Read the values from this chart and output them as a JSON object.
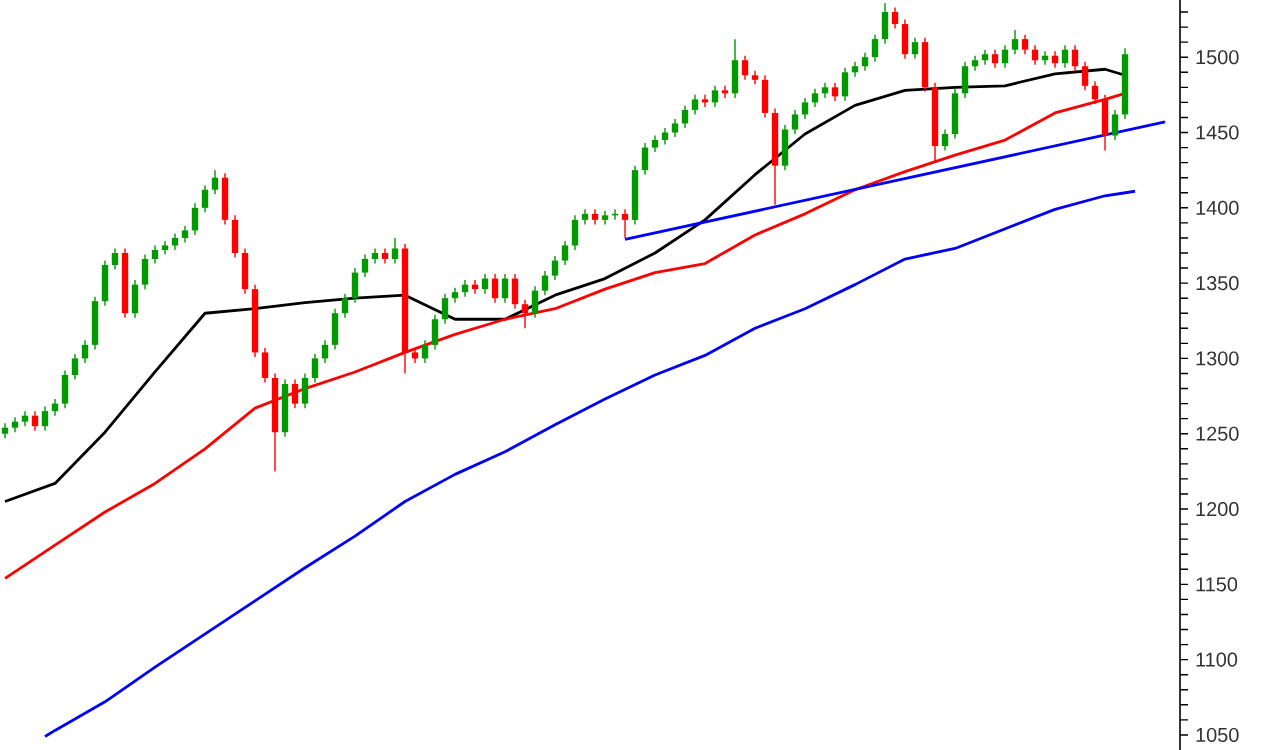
{
  "chart_data": {
    "type": "candlestick",
    "tick_labels": "y",
    "categories": [
      null,
      null,
      null,
      null,
      null,
      null,
      null,
      null,
      null,
      null,
      null,
      null,
      null,
      null,
      null,
      null,
      null,
      null,
      null,
      null,
      null,
      null,
      null,
      null,
      null,
      null,
      null,
      null,
      null,
      null,
      null,
      null,
      null,
      null,
      null,
      null,
      null,
      null,
      null,
      null,
      null,
      null,
      null,
      null,
      null,
      null,
      null,
      null,
      null,
      null,
      null,
      null,
      null,
      null,
      null,
      null,
      null,
      null,
      null,
      null,
      null,
      null,
      null,
      null,
      null,
      null,
      null,
      null,
      null,
      null,
      null,
      null,
      null,
      null,
      null,
      null,
      null,
      null,
      null,
      null,
      null,
      null,
      null,
      null,
      null,
      null,
      null,
      null,
      null,
      null,
      null,
      null,
      null,
      null,
      null,
      null,
      null,
      null,
      null,
      null,
      null,
      null,
      null,
      null,
      null,
      null,
      null,
      null,
      null,
      null,
      null,
      null,
      null,
      null,
      null,
      null,
      null
    ],
    "ohlc": [
      [
        1250,
        1257,
        1247,
        1254
      ],
      [
        1254,
        1261,
        1251,
        1258
      ],
      [
        1258,
        1265,
        1255,
        1262
      ],
      [
        1262,
        1265,
        1252,
        1255
      ],
      [
        1255,
        1268,
        1252,
        1265
      ],
      [
        1265,
        1273,
        1262,
        1270
      ],
      [
        1270,
        1292,
        1267,
        1289
      ],
      [
        1289,
        1303,
        1286,
        1300
      ],
      [
        1300,
        1312,
        1297,
        1309
      ],
      [
        1309,
        1341,
        1306,
        1338
      ],
      [
        1338,
        1365,
        1335,
        1362
      ],
      [
        1362,
        1373,
        1359,
        1370
      ],
      [
        1370,
        1373,
        1327,
        1330
      ],
      [
        1330,
        1352,
        1327,
        1349
      ],
      [
        1349,
        1369,
        1346,
        1366
      ],
      [
        1366,
        1375,
        1363,
        1372
      ],
      [
        1372,
        1378,
        1369,
        1375
      ],
      [
        1375,
        1383,
        1372,
        1380
      ],
      [
        1380,
        1388,
        1377,
        1385
      ],
      [
        1385,
        1403,
        1382,
        1400
      ],
      [
        1400,
        1415,
        1397,
        1412
      ],
      [
        1412,
        1425,
        1409,
        1420
      ],
      [
        1420,
        1423,
        1389,
        1392
      ],
      [
        1392,
        1395,
        1367,
        1370
      ],
      [
        1370,
        1373,
        1343,
        1346
      ],
      [
        1346,
        1349,
        1301,
        1304
      ],
      [
        1304,
        1307,
        1284,
        1287
      ],
      [
        1287,
        1290,
        1225,
        1251
      ],
      [
        1251,
        1286,
        1248,
        1283
      ],
      [
        1283,
        1286,
        1267,
        1270
      ],
      [
        1270,
        1290,
        1267,
        1287
      ],
      [
        1287,
        1303,
        1284,
        1300
      ],
      [
        1300,
        1312,
        1297,
        1309
      ],
      [
        1309,
        1333,
        1306,
        1330
      ],
      [
        1330,
        1343,
        1327,
        1340
      ],
      [
        1340,
        1360,
        1337,
        1357
      ],
      [
        1357,
        1369,
        1354,
        1366
      ],
      [
        1366,
        1373,
        1363,
        1370
      ],
      [
        1370,
        1373,
        1363,
        1366
      ],
      [
        1366,
        1380,
        1363,
        1373
      ],
      [
        1373,
        1376,
        1290,
        1304
      ],
      [
        1304,
        1307,
        1297,
        1300
      ],
      [
        1300,
        1312,
        1297,
        1309
      ],
      [
        1309,
        1329,
        1306,
        1326
      ],
      [
        1326,
        1343,
        1323,
        1340
      ],
      [
        1340,
        1347,
        1337,
        1344
      ],
      [
        1344,
        1352,
        1341,
        1349
      ],
      [
        1349,
        1352,
        1343,
        1346
      ],
      [
        1346,
        1356,
        1343,
        1353
      ],
      [
        1353,
        1356,
        1337,
        1340
      ],
      [
        1340,
        1356,
        1337,
        1353
      ],
      [
        1353,
        1356,
        1333,
        1336
      ],
      [
        1336,
        1339,
        1320,
        1330
      ],
      [
        1330,
        1348,
        1327,
        1345
      ],
      [
        1345,
        1358,
        1342,
        1355
      ],
      [
        1355,
        1368,
        1352,
        1365
      ],
      [
        1365,
        1378,
        1362,
        1375
      ],
      [
        1375,
        1395,
        1372,
        1392
      ],
      [
        1392,
        1399,
        1389,
        1396
      ],
      [
        1396,
        1399,
        1389,
        1392
      ],
      [
        1392,
        1398,
        1389,
        1395
      ],
      [
        1395,
        1399,
        1392,
        1396
      ],
      [
        1396,
        1399,
        1380,
        1392
      ],
      [
        1392,
        1428,
        1389,
        1425
      ],
      [
        1425,
        1443,
        1422,
        1440
      ],
      [
        1440,
        1448,
        1437,
        1445
      ],
      [
        1445,
        1453,
        1442,
        1450
      ],
      [
        1450,
        1459,
        1447,
        1456
      ],
      [
        1456,
        1468,
        1453,
        1465
      ],
      [
        1465,
        1475,
        1462,
        1472
      ],
      [
        1472,
        1475,
        1467,
        1470
      ],
      [
        1470,
        1481,
        1467,
        1478
      ],
      [
        1478,
        1481,
        1473,
        1476
      ],
      [
        1476,
        1512,
        1473,
        1498
      ],
      [
        1498,
        1501,
        1485,
        1488
      ],
      [
        1488,
        1491,
        1482,
        1485
      ],
      [
        1485,
        1488,
        1460,
        1463
      ],
      [
        1463,
        1466,
        1402,
        1428
      ],
      [
        1428,
        1455,
        1425,
        1452
      ],
      [
        1452,
        1465,
        1449,
        1462
      ],
      [
        1462,
        1473,
        1459,
        1470
      ],
      [
        1470,
        1479,
        1467,
        1476
      ],
      [
        1476,
        1483,
        1473,
        1480
      ],
      [
        1480,
        1483,
        1471,
        1474
      ],
      [
        1474,
        1493,
        1471,
        1490
      ],
      [
        1490,
        1497,
        1487,
        1494
      ],
      [
        1494,
        1503,
        1491,
        1500
      ],
      [
        1500,
        1515,
        1497,
        1512
      ],
      [
        1512,
        1536,
        1509,
        1530
      ],
      [
        1530,
        1533,
        1519,
        1522
      ],
      [
        1522,
        1525,
        1499,
        1502
      ],
      [
        1502,
        1513,
        1499,
        1510
      ],
      [
        1510,
        1513,
        1477,
        1480
      ],
      [
        1480,
        1483,
        1430,
        1441
      ],
      [
        1441,
        1452,
        1438,
        1449
      ],
      [
        1449,
        1479,
        1446,
        1476
      ],
      [
        1476,
        1497,
        1473,
        1494
      ],
      [
        1494,
        1501,
        1491,
        1498
      ],
      [
        1498,
        1505,
        1495,
        1502
      ],
      [
        1502,
        1505,
        1493,
        1496
      ],
      [
        1496,
        1508,
        1493,
        1505
      ],
      [
        1505,
        1518,
        1502,
        1512
      ],
      [
        1512,
        1515,
        1502,
        1505
      ],
      [
        1505,
        1508,
        1495,
        1498
      ],
      [
        1498,
        1504,
        1495,
        1501
      ],
      [
        1501,
        1504,
        1493,
        1496
      ],
      [
        1496,
        1508,
        1493,
        1505
      ],
      [
        1505,
        1508,
        1491,
        1494
      ],
      [
        1494,
        1497,
        1478,
        1481
      ],
      [
        1481,
        1484,
        1469,
        1472
      ],
      [
        1472,
        1475,
        1438,
        1448
      ],
      [
        1448,
        1465,
        1445,
        1462
      ],
      [
        1462,
        1506,
        1459,
        1502
      ],
      null,
      null,
      null,
      null
    ],
    "colors": [
      "#009900",
      "#009900",
      "#009900",
      "#ff0000",
      "#009900",
      "#009900",
      "#009900",
      "#009900",
      "#009900",
      "#009900",
      "#009900",
      "#009900",
      "#ff0000",
      "#009900",
      "#009900",
      "#009900",
      "#009900",
      "#009900",
      "#009900",
      "#009900",
      "#009900",
      "#009900",
      "#ff0000",
      "#ff0000",
      "#ff0000",
      "#ff0000",
      "#ff0000",
      "#ff0000",
      "#009900",
      "#ff0000",
      "#009900",
      "#009900",
      "#009900",
      "#009900",
      "#009900",
      "#009900",
      "#009900",
      "#009900",
      "#ff0000",
      "#009900",
      "#ff0000",
      "#ff0000",
      "#009900",
      "#009900",
      "#009900",
      "#009900",
      "#009900",
      "#ff0000",
      "#009900",
      "#ff0000",
      "#009900",
      "#ff0000",
      "#ff0000",
      "#009900",
      "#009900",
      "#009900",
      "#009900",
      "#009900",
      "#009900",
      "#ff0000",
      "#009900",
      "#009900",
      "#ff0000",
      "#009900",
      "#009900",
      "#009900",
      "#009900",
      "#009900",
      "#009900",
      "#009900",
      "#ff0000",
      "#009900",
      "#ff0000",
      "#009900",
      "#ff0000",
      "#ff0000",
      "#ff0000",
      "#ff0000",
      "#009900",
      "#009900",
      "#009900",
      "#009900",
      "#009900",
      "#ff0000",
      "#009900",
      "#009900",
      "#009900",
      "#009900",
      "#009900",
      "#ff0000",
      "#ff0000",
      "#009900",
      "#ff0000",
      "#ff0000",
      "#009900",
      "#009900",
      "#009900",
      "#009900",
      "#009900",
      "#ff0000",
      "#009900",
      "#009900",
      "#ff0000",
      "#ff0000",
      "#009900",
      "#ff0000",
      "#009900",
      "#ff0000",
      "#ff0000",
      "#ff0000",
      "#ff0000",
      "#009900",
      "#009900",
      null,
      null,
      null,
      null
    ],
    "series": [
      {
        "type": "line",
        "color": "#000000",
        "values": [
          1205,
          null,
          null,
          null,
          null,
          1217,
          null,
          null,
          null,
          null,
          1251,
          null,
          null,
          null,
          null,
          1291,
          null,
          null,
          null,
          null,
          1330,
          null,
          null,
          null,
          null,
          1333,
          null,
          null,
          null,
          null,
          1337,
          null,
          null,
          null,
          null,
          1340,
          null,
          null,
          null,
          null,
          1342,
          null,
          null,
          null,
          null,
          1326,
          null,
          null,
          null,
          null,
          1326,
          null,
          null,
          null,
          null,
          1342,
          null,
          null,
          null,
          null,
          1353,
          null,
          null,
          null,
          null,
          1370,
          null,
          null,
          null,
          null,
          1392,
          null,
          null,
          null,
          null,
          1422,
          null,
          null,
          null,
          null,
          1449,
          null,
          null,
          null,
          null,
          1468,
          null,
          null,
          null,
          null,
          1478,
          null,
          null,
          null,
          null,
          1480,
          null,
          null,
          null,
          null,
          1481,
          null,
          null,
          null,
          null,
          1489,
          null,
          null,
          null,
          null,
          1492,
          null,
          1488,
          null,
          null,
          null,
          null
        ]
      },
      {
        "type": "line",
        "color": "#ff0000",
        "values": [
          1154,
          null,
          null,
          null,
          null,
          1176,
          null,
          null,
          null,
          null,
          1198,
          null,
          null,
          null,
          null,
          1217,
          null,
          null,
          null,
          null,
          1240,
          null,
          null,
          null,
          null,
          1267,
          null,
          null,
          null,
          null,
          1280,
          null,
          null,
          null,
          null,
          1291,
          null,
          null,
          null,
          null,
          1304,
          null,
          null,
          null,
          null,
          1316,
          null,
          null,
          null,
          null,
          1326,
          null,
          null,
          null,
          null,
          1333,
          null,
          null,
          null,
          null,
          1346,
          null,
          null,
          null,
          null,
          1357,
          null,
          null,
          null,
          null,
          1363,
          null,
          null,
          null,
          null,
          1382,
          null,
          null,
          null,
          null,
          1396,
          null,
          null,
          null,
          null,
          1412,
          null,
          null,
          null,
          null,
          1424,
          null,
          null,
          null,
          null,
          1435,
          null,
          null,
          null,
          null,
          1445,
          null,
          null,
          null,
          null,
          1463,
          null,
          null,
          null,
          null,
          1472,
          null,
          1476,
          null,
          null,
          null,
          null
        ]
      },
      {
        "type": "line",
        "color": "#0000ff",
        "values": [
          null,
          null,
          null,
          null,
          1049,
          1053,
          null,
          null,
          null,
          null,
          1072,
          null,
          null,
          null,
          null,
          1095,
          null,
          null,
          null,
          null,
          1117,
          null,
          null,
          null,
          null,
          1139,
          null,
          null,
          null,
          null,
          1161,
          null,
          null,
          null,
          null,
          1182,
          null,
          null,
          null,
          null,
          1205,
          null,
          null,
          null,
          null,
          1223,
          null,
          null,
          null,
          null,
          1238,
          null,
          null,
          null,
          null,
          1256,
          null,
          null,
          null,
          null,
          1273,
          null,
          null,
          null,
          null,
          1289,
          null,
          null,
          null,
          null,
          1302,
          null,
          null,
          null,
          null,
          1320,
          null,
          null,
          null,
          null,
          1333,
          null,
          null,
          null,
          null,
          1349,
          null,
          null,
          null,
          null,
          1366,
          null,
          null,
          null,
          null,
          1373,
          null,
          null,
          null,
          null,
          1386,
          null,
          null,
          null,
          null,
          1399,
          null,
          null,
          null,
          null,
          1408,
          null,
          1410,
          1411,
          null,
          null,
          null
        ]
      },
      {
        "type": "line",
        "color": "#0000ff",
        "values": [
          null,
          null,
          null,
          null,
          null,
          null,
          null,
          null,
          null,
          null,
          null,
          null,
          null,
          null,
          null,
          null,
          null,
          null,
          null,
          null,
          null,
          null,
          null,
          null,
          null,
          null,
          null,
          null,
          null,
          null,
          null,
          null,
          null,
          null,
          null,
          null,
          null,
          null,
          null,
          null,
          null,
          null,
          null,
          null,
          null,
          null,
          null,
          null,
          null,
          null,
          null,
          null,
          null,
          null,
          null,
          null,
          null,
          null,
          null,
          null,
          null,
          null,
          1379,
          null,
          null,
          null,
          null,
          null,
          null,
          null,
          null,
          null,
          null,
          null,
          null,
          null,
          null,
          null,
          null,
          null,
          null,
          null,
          null,
          null,
          null,
          null,
          null,
          null,
          null,
          null,
          null,
          null,
          null,
          null,
          null,
          null,
          null,
          null,
          null,
          null,
          null,
          null,
          null,
          null,
          null,
          null,
          null,
          null,
          null,
          null,
          null,
          null,
          null,
          null,
          null,
          null,
          1457
        ]
      }
    ],
    "ylim": [
      1040,
      1538
    ],
    "yticks": [
      1050,
      {
        "value": 1060,
        "label": null
      },
      {
        "value": 1070,
        "label": null
      },
      {
        "value": 1080,
        "label": null
      },
      {
        "value": 1090,
        "label": null
      },
      1100,
      {
        "value": 1110,
        "label": null
      },
      {
        "value": 1120,
        "label": null
      },
      {
        "value": 1130,
        "label": null
      },
      {
        "value": 1140,
        "label": null
      },
      1150,
      {
        "value": 1160,
        "label": null
      },
      {
        "value": 1170,
        "label": null
      },
      {
        "value": 1180,
        "label": null
      },
      {
        "value": 1190,
        "label": null
      },
      1200,
      {
        "value": 1210,
        "label": null
      },
      {
        "value": 1220,
        "label": null
      },
      {
        "value": 1230,
        "label": null
      },
      {
        "value": 1240,
        "label": null
      },
      1250,
      {
        "value": 1260,
        "label": null
      },
      {
        "value": 1270,
        "label": null
      },
      {
        "value": 1280,
        "label": null
      },
      {
        "value": 1290,
        "label": null
      },
      1300,
      {
        "value": 1310,
        "label": null
      },
      {
        "value": 1320,
        "label": null
      },
      {
        "value": 1330,
        "label": null
      },
      {
        "value": 1340,
        "label": null
      },
      1350,
      {
        "value": 1360,
        "label": null
      },
      {
        "value": 1370,
        "label": null
      },
      {
        "value": 1380,
        "label": null
      },
      {
        "value": 1390,
        "label": null
      },
      1400,
      {
        "value": 1410,
        "label": null
      },
      {
        "value": 1420,
        "label": null
      },
      {
        "value": 1430,
        "label": null
      },
      {
        "value": 1440,
        "label": null
      },
      1450,
      {
        "value": 1460,
        "label": null
      },
      {
        "value": 1470,
        "label": null
      },
      {
        "value": 1480,
        "label": null
      },
      {
        "value": 1490,
        "label": null
      },
      1500,
      {
        "value": 1510,
        "label": null
      },
      {
        "value": 1520,
        "label": null
      },
      {
        "value": 1530,
        "label": null
      }
    ]
  }
}
